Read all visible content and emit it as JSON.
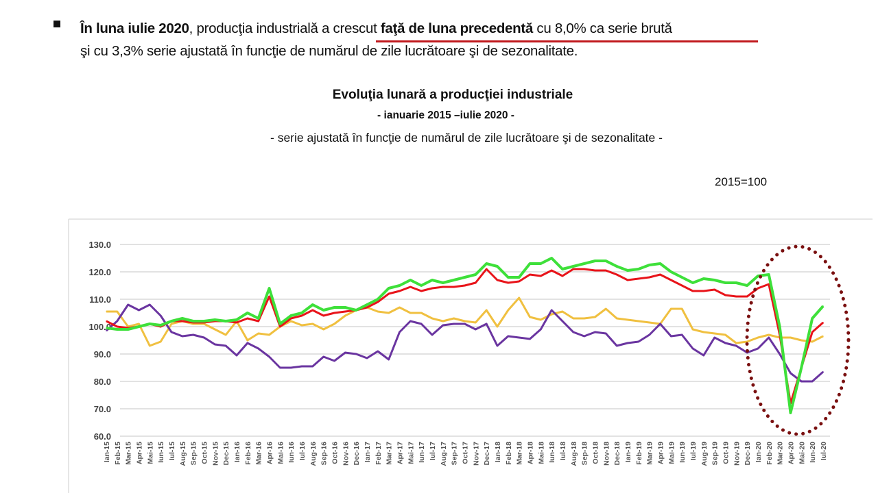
{
  "bullet": {
    "line1": [
      {
        "text": "În  luna iulie 2020",
        "bold": true
      },
      {
        "text": ", producţia industrială a crescut ",
        "bold": false
      },
      {
        "text": "faţă de luna precedentă",
        "bold": true
      },
      {
        "text": " cu 8,0% ca serie brută",
        "bold": false
      }
    ],
    "line2": "şi cu 3,3% serie ajustată în funcţie de numărul de zile lucrătoare  şi de sezonalitate."
  },
  "chart_data": {
    "type": "line",
    "title": "Evoluţia lunară a producţiei industriale",
    "subtitle": "- ianuarie 2015 –iulie 2020 -",
    "subtitle2": "- serie ajustată în funcţie de numărul de zile lucrătoare şi de sezonalitate -",
    "note": "2015=100",
    "ylim": [
      60,
      130
    ],
    "yticks": [
      "130.0",
      "120.0",
      "110.0",
      "100.0",
      "90.0",
      "80.0",
      "70.0",
      "60.0"
    ],
    "grid": true,
    "categories": [
      "Ian-15",
      "Feb-15",
      "Mar-15",
      "Apr-15",
      "Mai-15",
      "Iun-15",
      "Iul-15",
      "Aug-15",
      "Sep-15",
      "Oct-15",
      "Nov-15",
      "Dec-15",
      "Ian-16",
      "Feb-16",
      "Mar-16",
      "Apr-16",
      "Mai-16",
      "Iun-16",
      "Iul-16",
      "Aug-16",
      "Sep-16",
      "Oct-16",
      "Nov-16",
      "Dec-16",
      "Ian-17",
      "Feb-17",
      "Mar-17",
      "Apr-17",
      "Mai-17",
      "Iun-17",
      "Iul-17",
      "Aug-17",
      "Sep-17",
      "Oct-17",
      "Nov-17",
      "Dec-17",
      "Ian-18",
      "Feb-18",
      "Mar-18",
      "Apr-18",
      "Mai-18",
      "Iun-18",
      "Iul-18",
      "Aug-18",
      "Sep-18",
      "Oct-18",
      "Nov-18",
      "Dec-18",
      "Ian-19",
      "Feb-19",
      "Mar-19",
      "Apr-19",
      "Mai-19",
      "Iun-19",
      "Iul-19",
      "Aug-19",
      "Sep-19",
      "Oct-19",
      "Nov-19",
      "Dec-19",
      "Ian-20",
      "Feb-20",
      "Mar-20",
      "Apr-20",
      "Mai-20",
      "Iun-20",
      "Iul-20"
    ],
    "series": [
      {
        "color": "#f0c040",
        "values": [
          105.5,
          105.5,
          100,
          101,
          93,
          94.5,
          101,
          102,
          101,
          101,
          99,
          97,
          102,
          95,
          97.5,
          97,
          100,
          102,
          100.5,
          101,
          99,
          101,
          104,
          106,
          107,
          105.5,
          105,
          107,
          105,
          105,
          103,
          102,
          103,
          102,
          101.5,
          106,
          100,
          106,
          110.5,
          103.5,
          102.5,
          104.5,
          105.5,
          103,
          103,
          103.5,
          106.5,
          103,
          102.5,
          102,
          101.5,
          101,
          106.5,
          106.5,
          99,
          98,
          97.5,
          97,
          94,
          94.5,
          96,
          97,
          96,
          96,
          95,
          94.5,
          96.5
        ]
      },
      {
        "color": "#6a35a0",
        "values": [
          98.5,
          102,
          108,
          106,
          108,
          104,
          98,
          96.5,
          97,
          96,
          93.5,
          93,
          89.5,
          94,
          92,
          89,
          85,
          85,
          85.5,
          85.5,
          89,
          87.5,
          90.5,
          90,
          88.5,
          91,
          88,
          98,
          102,
          101,
          97,
          100.5,
          101,
          101,
          99,
          101,
          93,
          96.5,
          96,
          95.5,
          99,
          106,
          102,
          98,
          96.5,
          98,
          97.5,
          93,
          94,
          94.5,
          97,
          101,
          96.5,
          97,
          92,
          89.5,
          96,
          94,
          93,
          90.5,
          92,
          96,
          90,
          83,
          80,
          80,
          83.5
        ]
      },
      {
        "color": "#e8141a",
        "values": [
          102,
          100,
          99.5,
          100,
          101,
          100,
          102,
          102,
          101.5,
          101.5,
          102,
          102,
          101.5,
          103,
          102,
          111,
          100,
          103,
          104,
          106,
          104,
          105,
          105.5,
          106,
          107,
          109,
          112,
          113,
          114.5,
          113,
          114,
          114.5,
          114.5,
          115,
          116,
          121,
          117,
          116,
          116.5,
          119,
          118.5,
          120.5,
          118.5,
          121,
          121,
          120.5,
          120.5,
          119,
          117,
          117.5,
          118,
          119,
          117,
          115,
          113,
          113,
          113.5,
          111.5,
          111,
          111,
          114,
          115.5,
          97,
          72,
          85,
          98,
          101.5
        ]
      },
      {
        "color": "#3ee03a",
        "values": [
          99.5,
          99,
          99,
          100,
          101,
          100.5,
          102,
          103,
          102,
          102,
          102.5,
          102,
          102.5,
          105,
          103,
          114,
          101,
          104,
          105,
          108,
          106,
          107,
          107,
          106,
          108,
          110,
          114,
          115,
          117,
          115,
          117,
          116,
          117,
          118,
          119,
          123,
          122,
          118,
          118,
          123,
          123,
          125,
          121,
          122,
          123,
          124,
          124,
          122,
          120.5,
          121,
          122.5,
          123,
          120,
          118,
          116,
          117.5,
          117,
          116,
          116,
          115,
          118.5,
          119,
          100,
          68.5,
          85,
          103,
          107.5
        ]
      }
    ],
    "highlight_color": "#7a1010"
  }
}
